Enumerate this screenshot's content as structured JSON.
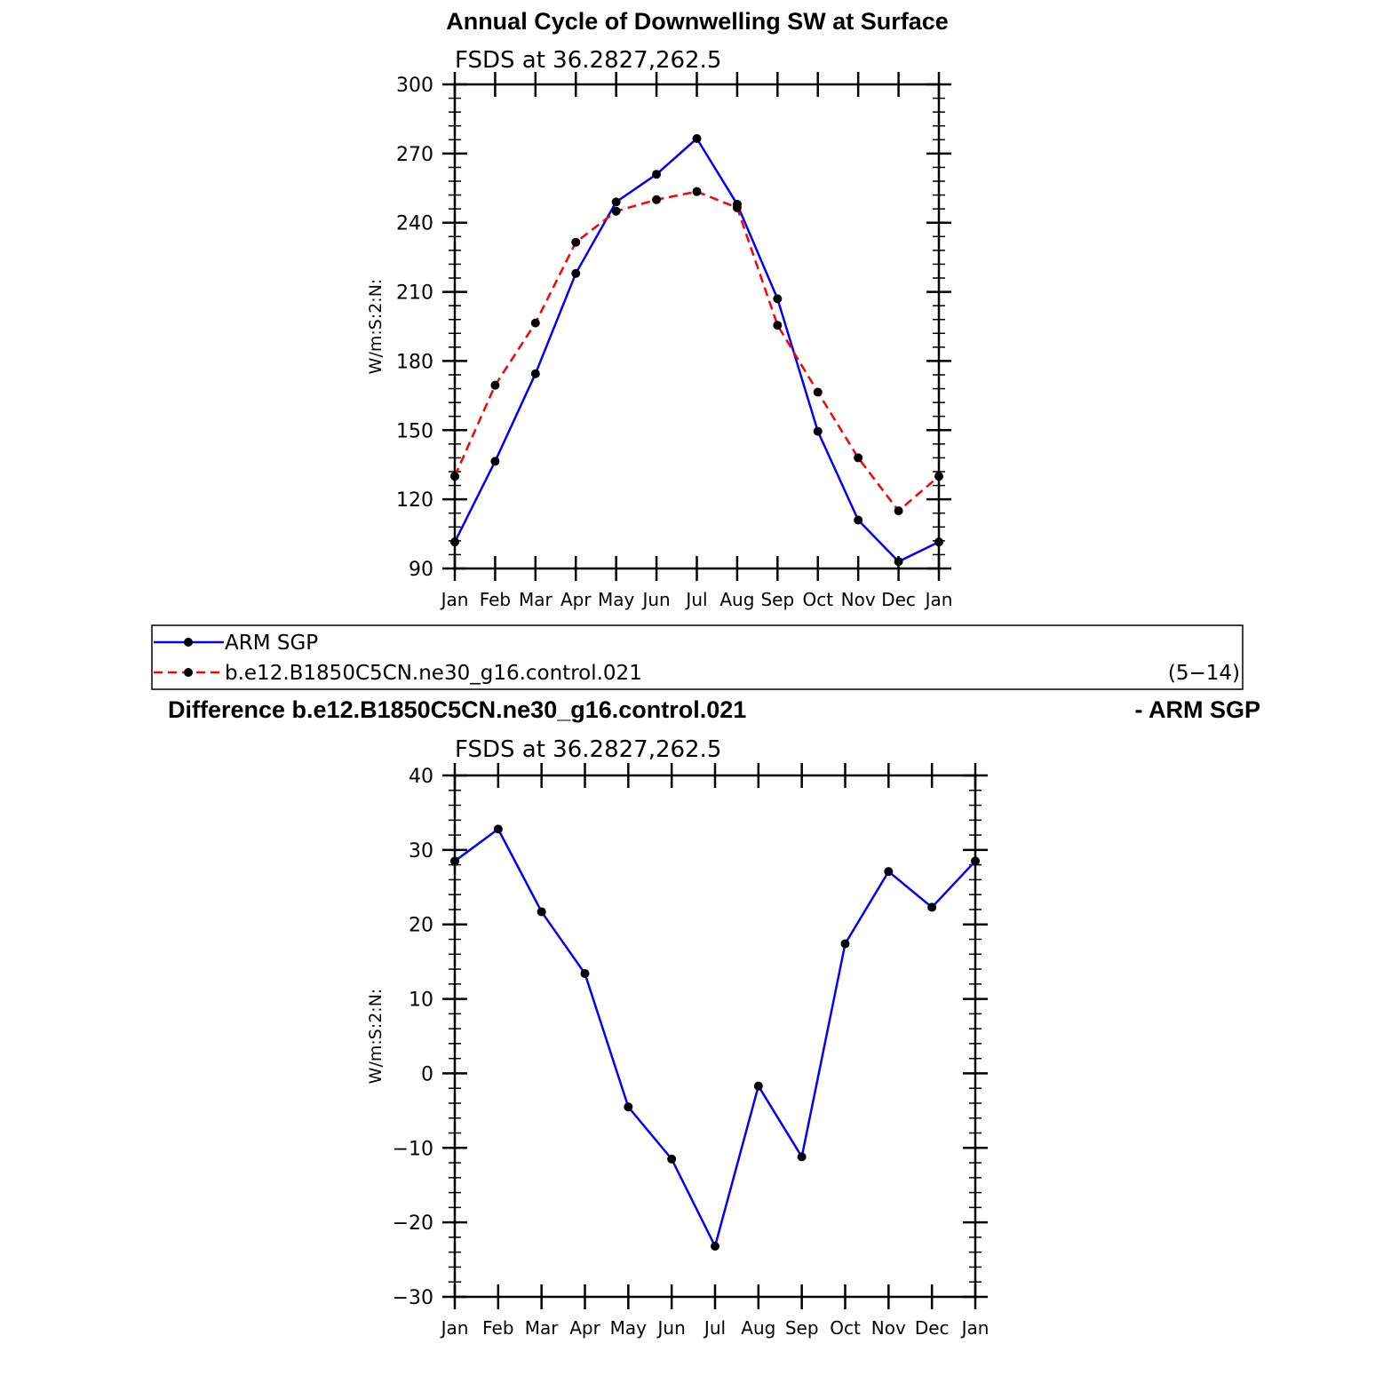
{
  "chart_data": [
    {
      "type": "line",
      "title": "Annual Cycle of Downwelling SW at Surface",
      "subtitle": "FSDS at 36.2827,262.5",
      "ylabel": "W/m:S:2:N:",
      "xlabel": "",
      "categories": [
        "Jan",
        "Feb",
        "Mar",
        "Apr",
        "May",
        "Jun",
        "Jul",
        "Aug",
        "Sep",
        "Oct",
        "Nov",
        "Dec",
        "Jan"
      ],
      "ylim": [
        90,
        300
      ],
      "yticks": [
        90,
        120,
        150,
        180,
        210,
        240,
        270,
        300
      ],
      "series": [
        {
          "name": "ARM SGP",
          "color": "#0000ff",
          "dash": "solid",
          "values": [
            101.5,
            136.5,
            174.5,
            218,
            249,
            261,
            276.5,
            248,
            207,
            149.5,
            111,
            93,
            101.5
          ]
        },
        {
          "name": "b.e12.B1850C5CN.ne30_g16.control.021",
          "color": "#ff0000",
          "dash": "dashed",
          "values": [
            130,
            169.5,
            196.5,
            231.5,
            245,
            250,
            253.5,
            246.5,
            195.5,
            166.5,
            138,
            115,
            130
          ]
        }
      ],
      "legend": {
        "placement": "bottom",
        "entries": [
          "ARM SGP",
          "b.e12.B1850C5CN.ne30_g16.control.021"
        ],
        "note": "(5−14)"
      }
    },
    {
      "type": "line",
      "title_left": "Difference b.e12.B1850C5CN.ne30_g16.control.021",
      "title_right": "- ARM SGP",
      "subtitle": "FSDS at 36.2827,262.5",
      "ylabel": "W/m:S:2:N:",
      "xlabel": "",
      "categories": [
        "Jan",
        "Feb",
        "Mar",
        "Apr",
        "May",
        "Jun",
        "Jul",
        "Aug",
        "Sep",
        "Oct",
        "Nov",
        "Dec",
        "Jan"
      ],
      "ylim": [
        -30,
        40
      ],
      "yticks": [
        -30,
        -20,
        -10,
        0,
        10,
        20,
        30,
        40
      ],
      "ytick_labels": [
        "−30",
        "−20",
        "−10",
        "0",
        "10",
        "20",
        "30",
        "40"
      ],
      "series": [
        {
          "color": "#0000ff",
          "dash": "solid",
          "values": [
            28.5,
            32.8,
            21.7,
            13.4,
            -4.5,
            -11.5,
            -23.2,
            -1.7,
            -11.2,
            17.4,
            27.1,
            22.3,
            28.5
          ]
        }
      ]
    }
  ]
}
